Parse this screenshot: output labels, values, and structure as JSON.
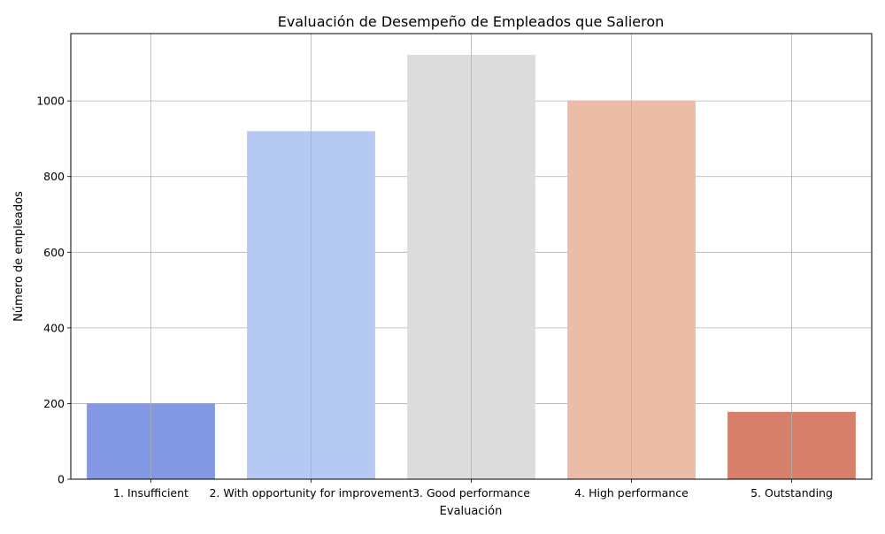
{
  "chart_data": {
    "type": "bar",
    "title": "Evaluación de Desempeño de Empleados que Salieron",
    "xlabel": "Evaluación",
    "ylabel": "Número de empleados",
    "categories": [
      "1. Insufficient",
      "2. With opportunity for improvement",
      "3. Good performance",
      "4. High performance",
      "5. Outstanding"
    ],
    "values": [
      200,
      920,
      1122,
      1000,
      178
    ],
    "colors": [
      "#8399e5",
      "#b5c9f3",
      "#dcdcdc",
      "#ecbca6",
      "#d6806c"
    ],
    "ylim": [
      0,
      1178
    ],
    "yticks": [
      0,
      200,
      400,
      600,
      800,
      1000
    ],
    "grid": true,
    "legend": "none"
  }
}
